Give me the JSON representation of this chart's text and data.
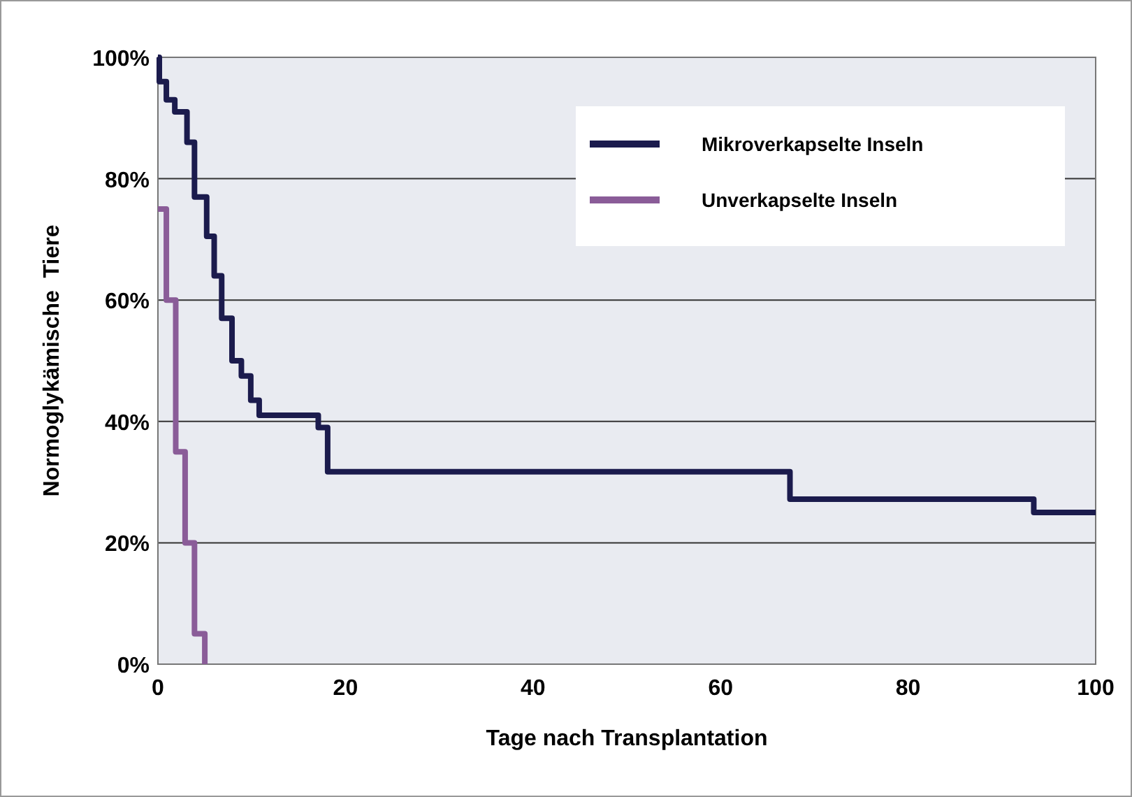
{
  "chart_data": {
    "type": "step",
    "xlabel": "Tage nach Transplantation",
    "ylabel": "Normoglykämische  Tiere",
    "xlim": [
      0,
      100
    ],
    "xticks": [
      0,
      20,
      40,
      60,
      80,
      100
    ],
    "ylim": [
      0,
      100
    ],
    "yticks": [
      {
        "value": 0,
        "label": "0%"
      },
      {
        "value": 20,
        "label": "20%"
      },
      {
        "value": 40,
        "label": "40%"
      },
      {
        "value": 60,
        "label": "60%"
      },
      {
        "value": 80,
        "label": "80%"
      },
      {
        "value": 100,
        "label": "100%"
      }
    ],
    "grid": "y",
    "legend": "top right",
    "line_style": "solid",
    "marker": "none",
    "series": [
      {
        "name": "Mikroverkapselte Inseln",
        "color": "#1b1b4d",
        "x": [
          0,
          0.15,
          0.9,
          1.8,
          3.1,
          3.9,
          5.2,
          6,
          6.8,
          7.9,
          8.9,
          9.9,
          10.8,
          17.1,
          18.1,
          67.4,
          93.4,
          100
        ],
        "values": [
          100,
          96,
          93,
          91,
          86,
          77,
          70.5,
          64,
          57,
          50,
          47.5,
          43.5,
          41,
          39,
          31.7,
          27.2,
          25,
          25
        ]
      },
      {
        "name": "Unverkapselte Inseln",
        "color": "#8a5c98",
        "x": [
          0,
          0.9,
          1.9,
          2.9,
          3.9,
          5
        ],
        "values": [
          75,
          60,
          35,
          20,
          5,
          0
        ]
      }
    ]
  }
}
